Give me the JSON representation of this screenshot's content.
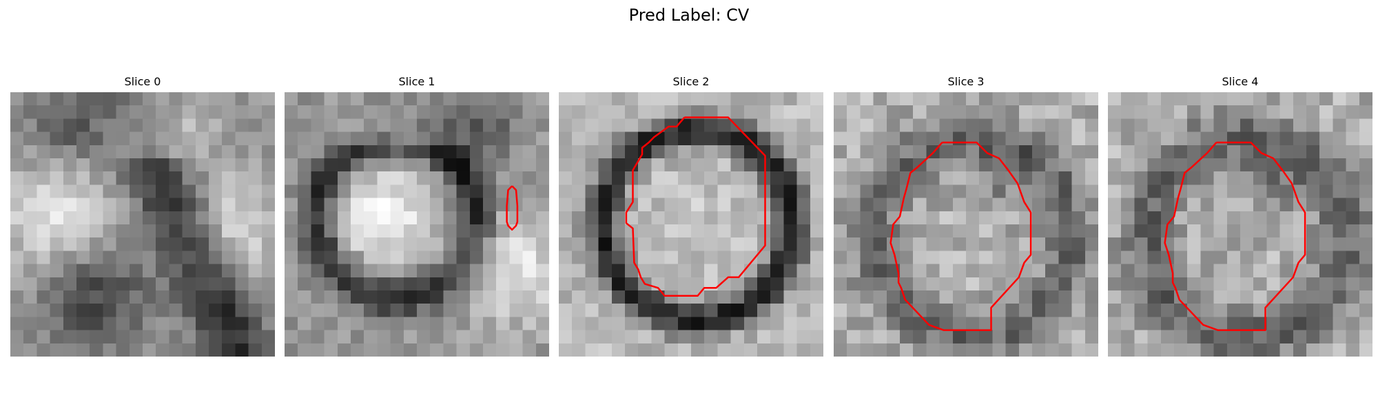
{
  "figure": {
    "title": "Pred Label: CV"
  },
  "panels": [
    {
      "title": "Slice 0",
      "contour_color": "#ff0000",
      "contour_points": []
    },
    {
      "title": "Slice 1",
      "contour_color": "#ff0000",
      "contour_points": [
        [
          17.2,
          7.1
        ],
        [
          17.5,
          7.4
        ],
        [
          17.6,
          8.6
        ],
        [
          17.6,
          9.8
        ],
        [
          17.5,
          10.1
        ],
        [
          17.2,
          10.4
        ],
        [
          16.9,
          10.1
        ],
        [
          16.8,
          9.8
        ],
        [
          16.8,
          8.6
        ],
        [
          16.9,
          7.4
        ],
        [
          17.2,
          7.1
        ]
      ]
    },
    {
      "title": "Slice 2",
      "contour_color": "#ff0000",
      "contour_points": [
        [
          9.5,
          1.9
        ],
        [
          12.8,
          1.9
        ],
        [
          15.6,
          4.8
        ],
        [
          15.6,
          11.6
        ],
        [
          13.6,
          14.0
        ],
        [
          12.8,
          14.0
        ],
        [
          11.9,
          14.8
        ],
        [
          11.0,
          14.8
        ],
        [
          10.5,
          15.4
        ],
        [
          8.0,
          15.4
        ],
        [
          7.5,
          14.8
        ],
        [
          6.5,
          14.5
        ],
        [
          6.2,
          14.0
        ],
        [
          6.0,
          13.4
        ],
        [
          5.7,
          12.9
        ],
        [
          5.6,
          10.3
        ],
        [
          5.1,
          9.9
        ],
        [
          5.1,
          9.1
        ],
        [
          5.6,
          8.3
        ],
        [
          5.6,
          5.9
        ],
        [
          6.3,
          4.7
        ],
        [
          6.3,
          4.2
        ],
        [
          6.8,
          3.8
        ],
        [
          7.2,
          3.4
        ],
        [
          8.3,
          2.6
        ],
        [
          8.9,
          2.6
        ],
        [
          9.5,
          1.9
        ]
      ]
    },
    {
      "title": "Slice 3",
      "contour_color": "#ff0000",
      "contour_points": [
        [
          8.2,
          3.8
        ],
        [
          10.8,
          3.8
        ],
        [
          11.6,
          4.6
        ],
        [
          12.5,
          5.0
        ],
        [
          13.2,
          5.9
        ],
        [
          13.9,
          6.9
        ],
        [
          14.4,
          8.3
        ],
        [
          14.9,
          9.1
        ],
        [
          14.9,
          12.3
        ],
        [
          14.4,
          12.9
        ],
        [
          14.0,
          14.0
        ],
        [
          11.9,
          16.3
        ],
        [
          11.9,
          18.0
        ],
        [
          11.9,
          18.0
        ],
        [
          8.3,
          18.0
        ],
        [
          7.2,
          17.6
        ],
        [
          5.4,
          15.7
        ],
        [
          5.1,
          14.8
        ],
        [
          4.9,
          14.4
        ],
        [
          4.9,
          13.7
        ],
        [
          4.6,
          12.3
        ],
        [
          4.3,
          11.4
        ],
        [
          4.5,
          10.0
        ],
        [
          5.0,
          9.4
        ],
        [
          5.3,
          8.0
        ],
        [
          5.5,
          7.3
        ],
        [
          5.8,
          6.1
        ],
        [
          6.3,
          5.7
        ],
        [
          7.5,
          4.6
        ],
        [
          8.2,
          3.8
        ]
      ]
    },
    {
      "title": "Slice 4",
      "contour_color": "#ff0000",
      "contour_points": [
        [
          8.2,
          3.8
        ],
        [
          10.8,
          3.8
        ],
        [
          11.6,
          4.6
        ],
        [
          12.5,
          5.0
        ],
        [
          13.2,
          5.9
        ],
        [
          13.9,
          6.9
        ],
        [
          14.4,
          8.3
        ],
        [
          14.9,
          9.1
        ],
        [
          14.9,
          12.3
        ],
        [
          14.4,
          12.9
        ],
        [
          14.0,
          14.0
        ],
        [
          11.9,
          16.3
        ],
        [
          11.9,
          18.0
        ],
        [
          11.9,
          18.0
        ],
        [
          8.3,
          18.0
        ],
        [
          7.2,
          17.6
        ],
        [
          5.4,
          15.7
        ],
        [
          5.1,
          14.8
        ],
        [
          4.9,
          14.4
        ],
        [
          4.9,
          13.7
        ],
        [
          4.6,
          12.3
        ],
        [
          4.3,
          11.4
        ],
        [
          4.5,
          10.0
        ],
        [
          5.0,
          9.4
        ],
        [
          5.3,
          8.0
        ],
        [
          5.5,
          7.3
        ],
        [
          5.8,
          6.1
        ],
        [
          6.3,
          5.7
        ],
        [
          7.5,
          4.6
        ],
        [
          8.2,
          3.8
        ]
      ]
    }
  ]
}
